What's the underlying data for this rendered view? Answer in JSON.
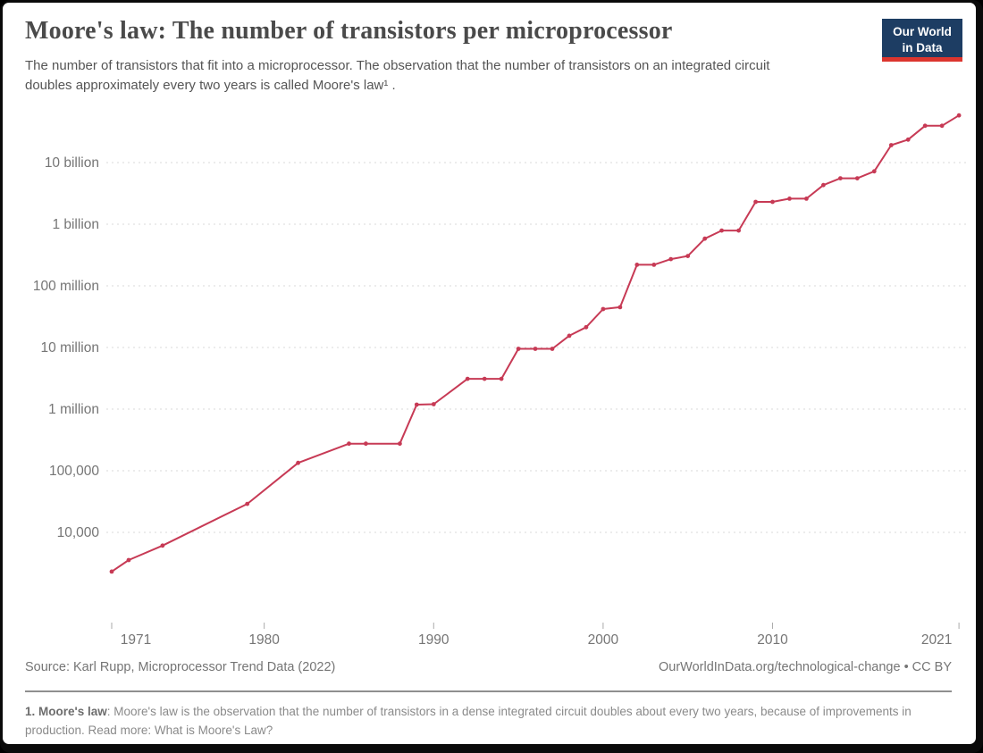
{
  "header": {
    "title": "Moore's law: The number of transistors per microprocessor",
    "subtitle": "The number of transistors that fit into a microprocessor. The observation that the number of transistors on an integrated circuit doubles approximately every two years is called Moore's law¹ .",
    "logo": {
      "line1": "Our World",
      "line2": "in Data"
    }
  },
  "chart_data": {
    "type": "line",
    "title": "Moore's law: The number of transistors per microprocessor",
    "series_name": "Transistors per microprocessor",
    "x": [
      1971,
      1972,
      1974,
      1979,
      1982,
      1985,
      1986,
      1988,
      1989,
      1990,
      1992,
      1993,
      1994,
      1995,
      1996,
      1997,
      1998,
      1999,
      2000,
      2001,
      2002,
      2003,
      2004,
      2005,
      2006,
      2007,
      2008,
      2009,
      2010,
      2011,
      2012,
      2013,
      2014,
      2015,
      2016,
      2017,
      2018,
      2019,
      2020,
      2021
    ],
    "values": [
      2308,
      3555,
      6098,
      29000,
      134000,
      275000,
      275000,
      275000,
      1180235,
      1200000,
      3100000,
      3100000,
      3100000,
      9500000,
      9500000,
      9500000,
      15500000,
      21300000,
      42000000,
      45000000,
      220000000,
      220000000,
      271000000,
      305000000,
      582000000,
      789000000,
      789000000,
      2300000000,
      2300000000,
      2600000000,
      2600000000,
      4310000000,
      5560000000,
      5560000000,
      7200000000,
      19200000000,
      23600000000,
      39540000000,
      39540000000,
      58200000000
    ],
    "xlabel": "",
    "ylabel": "",
    "y_scale": "log",
    "xlim": [
      1971,
      2021
    ],
    "ylim": [
      2308,
      58200000000
    ],
    "grid": "horizontal-dashed",
    "legend": "none",
    "line_color": "#C73A55",
    "y_ticks": [
      {
        "value": 10000000000,
        "label": "10 billion"
      },
      {
        "value": 1000000000,
        "label": "1 billion"
      },
      {
        "value": 100000000,
        "label": "100 million"
      },
      {
        "value": 10000000,
        "label": "10 million"
      },
      {
        "value": 1000000,
        "label": "1 million"
      },
      {
        "value": 100000,
        "label": "100,000"
      },
      {
        "value": 10000,
        "label": "10,000"
      }
    ],
    "x_ticks": [
      {
        "year": 1971,
        "label": "1971"
      },
      {
        "year": 1980,
        "label": "1980"
      },
      {
        "year": 1990,
        "label": "1990"
      },
      {
        "year": 2000,
        "label": "2000"
      },
      {
        "year": 2010,
        "label": "2010"
      },
      {
        "year": 2021,
        "label": "2021"
      }
    ]
  },
  "footer": {
    "source": "Source: Karl Rupp, Microprocessor Trend Data (2022)",
    "credit": "OurWorldInData.org/technological-change • CC BY",
    "footnote_label": "1. Moore's law",
    "footnote_text": ": Moore's law is the observation that the number of transistors in a dense integrated circuit doubles about every two years, because of improvements in production. Read more: ",
    "footnote_link": "What is Moore's Law?"
  }
}
